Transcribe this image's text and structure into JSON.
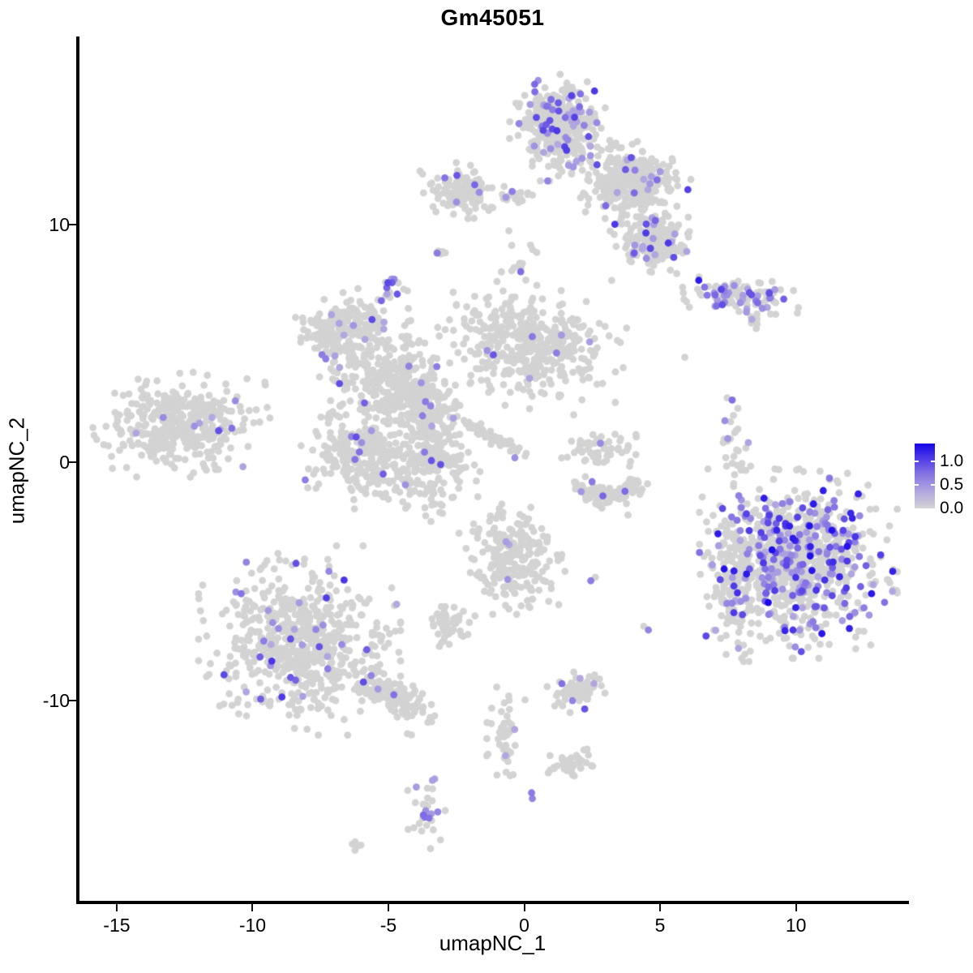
{
  "title": "Gm45051",
  "axes": {
    "x": {
      "label": "umapNC_1",
      "tick_labels": [
        "-15",
        "-10",
        "-5",
        "0",
        "5",
        "10"
      ],
      "tick_values": [
        -15,
        -10,
        -5,
        0,
        5,
        10
      ]
    },
    "y": {
      "label": "umapNC_2",
      "tick_labels": [
        "10",
        "0",
        "-10"
      ],
      "tick_values": [
        10,
        0,
        -10
      ]
    }
  },
  "legend": {
    "labels": [
      "1.0",
      "0.5",
      "0.0"
    ],
    "values": [
      1.0,
      0.5,
      0.0
    ],
    "max_value": 1.38,
    "low_color": "#D3D3D3",
    "high_color": "#1505EA"
  },
  "chart_data": {
    "type": "scatter",
    "title": "Gm45051",
    "xlabel": "umapNC_1",
    "ylabel": "umapNC_2",
    "xlim": [
      -16.49,
      14.16
    ],
    "ylim": [
      -18.42,
      17.9
    ],
    "grid": false,
    "legend_position": "right",
    "point_radius_px": 4.4,
    "point_base_color": "#D3D3D3",
    "colormap": [
      [
        0,
        "#D3D3D3"
      ],
      [
        0.25,
        "#B4A8DF"
      ],
      [
        0.5,
        "#8B7BE3"
      ],
      [
        0.75,
        "#5440E6"
      ],
      [
        1,
        "#1505EA"
      ]
    ],
    "seed": 42,
    "clusters": [
      {
        "name": "top-core",
        "cx": 1.28,
        "cy": 14.12,
        "sx": 0.7,
        "sy": 0.88,
        "rot": 0,
        "n": 420,
        "f": 0.13,
        "imax": 0.8
      },
      {
        "name": "top-arm",
        "cx": 3.97,
        "cy": 11.73,
        "sx": 0.81,
        "sy": 0.68,
        "rot": 10,
        "n": 330,
        "f": 0.05,
        "imax": 0.75
      },
      {
        "name": "topright-blob",
        "cx": 4.72,
        "cy": 9.35,
        "sx": 0.6,
        "sy": 0.58,
        "rot": 0,
        "n": 200,
        "f": 0.1,
        "imax": 0.8
      },
      {
        "name": "topleft-small",
        "cx": -2.3,
        "cy": 11.39,
        "sx": 0.6,
        "sy": 0.44,
        "rot": 0,
        "n": 130,
        "f": 0.06,
        "imax": 0.7
      },
      {
        "name": "topmid-sparse",
        "cx": -0.36,
        "cy": 11.22,
        "sx": 0.36,
        "sy": 0.2,
        "rot": 0,
        "n": 18,
        "f": 0.05,
        "imax": 0.6
      },
      {
        "name": "tiny-pair",
        "cx": -3.13,
        "cy": 8.88,
        "sx": 0.12,
        "sy": 0.12,
        "rot": 0,
        "n": 7,
        "f": 0.35,
        "imax": 0.85
      },
      {
        "name": "top-tail",
        "cx": -0.19,
        "cy": 8.53,
        "sx": 0.25,
        "sy": 0.55,
        "rot": 0,
        "n": 14,
        "f": 0.1,
        "imax": 0.6
      },
      {
        "name": "right-elongated",
        "cx": 8.0,
        "cy": 7.04,
        "sx": 0.9,
        "sy": 0.27,
        "rot": 5,
        "n": 115,
        "f": 0.3,
        "imax": 0.95
      },
      {
        "name": "right-streak",
        "cx": 8.48,
        "cy": 5.95,
        "sx": 0.15,
        "sy": 0.25,
        "rot": 0,
        "n": 9,
        "f": 0.3,
        "imax": 0.7
      },
      {
        "name": "midleft",
        "cx": -6.63,
        "cy": 5.51,
        "sx": 0.75,
        "sy": 0.61,
        "rot": -15,
        "n": 230,
        "f": 0.05,
        "imax": 0.75
      },
      {
        "name": "purple-knot",
        "cx": -4.81,
        "cy": 7.31,
        "sx": 0.21,
        "sy": 0.25,
        "rot": 0,
        "n": 14,
        "f": 0.45,
        "imax": 0.85
      },
      {
        "name": "sparse-chain",
        "cx": -4.18,
        "cy": 5.1,
        "sx": 0.15,
        "sy": 0.85,
        "rot": 0,
        "n": 18,
        "f": 0.08,
        "imax": 0.6
      },
      {
        "name": "center-west",
        "cx": -5.28,
        "cy": 3.4,
        "sx": 0.84,
        "sy": 0.75,
        "rot": 0,
        "n": 190,
        "f": 0.035,
        "imax": 0.7
      },
      {
        "name": "center-mid",
        "cx": -3.79,
        "cy": 2.55,
        "sx": 0.66,
        "sy": 0.95,
        "rot": 0,
        "n": 170,
        "f": 0.03,
        "imax": 0.7
      },
      {
        "name": "center-south-west",
        "cx": -6.03,
        "cy": 0.34,
        "sx": 0.84,
        "sy": 0.88,
        "rot": 0,
        "n": 260,
        "f": 0.025,
        "imax": 0.7
      },
      {
        "name": "center-south-mid",
        "cx": -3.49,
        "cy": 0.17,
        "sx": 0.72,
        "sy": 1.02,
        "rot": 0,
        "n": 220,
        "f": 0.03,
        "imax": 0.7
      },
      {
        "name": "diag-streak",
        "cx": -1.28,
        "cy": 1.12,
        "sx": 0.75,
        "sy": 0.12,
        "rot": 28,
        "n": 60,
        "f": 0.03,
        "imax": 0.6
      },
      {
        "name": "center-east",
        "cx": 0.24,
        "cy": 4.93,
        "sx": 1.34,
        "sy": 1.02,
        "rot": 8,
        "n": 430,
        "f": 0.02,
        "imax": 0.7
      },
      {
        "name": "far-left",
        "cx": -12.6,
        "cy": 1.53,
        "sx": 1.25,
        "sy": 0.85,
        "rot": -8,
        "n": 390,
        "f": 0.022,
        "imax": 0.7
      },
      {
        "name": "crescent",
        "type": "arc",
        "cx": 3.01,
        "cy": -0.34,
        "r": 40,
        "w": 7,
        "ys": 0.8,
        "a0": 20,
        "a1": 160,
        "n": 120,
        "f": 0.025,
        "imax": 0.7
      },
      {
        "name": "crescent-top",
        "cx": 2.78,
        "cy": 0.63,
        "sx": 0.54,
        "sy": 0.41,
        "rot": 0,
        "n": 55,
        "f": 0.02,
        "imax": 0.6
      },
      {
        "name": "right-curved",
        "cx": 7.79,
        "cy": 0.17,
        "sx": 0.21,
        "sy": 1.19,
        "rot": -8,
        "n": 38,
        "f": 0.16,
        "imax": 0.8
      },
      {
        "name": "big-right",
        "cx": 10.09,
        "cy": -4.25,
        "sx": 1.4,
        "sy": 1.53,
        "rot": 0,
        "n": 830,
        "f": 0.28,
        "imax": 1.0
      },
      {
        "name": "big-right-west",
        "cx": 7.7,
        "cy": -5.27,
        "sx": 0.45,
        "sy": 1.19,
        "rot": 0,
        "n": 120,
        "f": 0.09,
        "imax": 0.8
      },
      {
        "name": "center-low",
        "cx": -0.45,
        "cy": -3.91,
        "sx": 0.75,
        "sy": 0.95,
        "rot": 0,
        "n": 240,
        "f": 0.015,
        "imax": 0.6
      },
      {
        "name": "center-low-sw",
        "cx": -2.75,
        "cy": -6.87,
        "sx": 0.36,
        "sy": 0.41,
        "rot": 0,
        "n": 55,
        "f": 0,
        "imax": 0.6
      },
      {
        "name": "bottom-left",
        "cx": -8.27,
        "cy": -7.48,
        "sx": 1.43,
        "sy": 1.53,
        "rot": 0,
        "n": 640,
        "f": 0.05,
        "imax": 0.8
      },
      {
        "name": "bottom-left-tail",
        "cx": -4.84,
        "cy": -9.8,
        "sx": 0.66,
        "sy": 0.31,
        "rot": 28,
        "n": 140,
        "f": 0.03,
        "imax": 0.7
      },
      {
        "name": "bottom-small",
        "cx": 2.03,
        "cy": -9.52,
        "sx": 0.48,
        "sy": 0.41,
        "rot": 0,
        "n": 70,
        "f": 0.07,
        "imax": 0.7
      },
      {
        "name": "chain-vertical",
        "cx": -0.75,
        "cy": -11.39,
        "sx": 0.3,
        "sy": 0.75,
        "rot": 0,
        "n": 45,
        "f": 0.03,
        "imax": 0.6
      },
      {
        "name": "boot",
        "cx": 1.81,
        "cy": -12.6,
        "sx": 0.42,
        "sy": 0.34,
        "rot": -30,
        "n": 40,
        "f": 0,
        "imax": 0.6
      },
      {
        "name": "bottom-tiny",
        "cx": -3.61,
        "cy": -14.46,
        "sx": 0.27,
        "sy": 0.68,
        "rot": 0,
        "n": 32,
        "f": 0.2,
        "imax": 0.7
      },
      {
        "name": "tiny-dash",
        "cx": -6.15,
        "cy": -16.05,
        "sx": 0.18,
        "sy": 0.1,
        "rot": 20,
        "n": 6,
        "f": 0,
        "imax": 0.6
      }
    ],
    "singles": [
      {
        "x": -2.5,
        "y": 12.6,
        "t": 0
      },
      {
        "x": 3.22,
        "y": 7.65,
        "t": 0
      },
      {
        "x": 5.91,
        "y": 4.42,
        "t": 0
      },
      {
        "x": 3.82,
        "y": -2.21,
        "t": 0
      },
      {
        "x": 2.45,
        "y": -4.97,
        "t": 0.5
      },
      {
        "x": 2.62,
        "y": -4.82,
        "t": 0
      },
      {
        "x": 4.57,
        "y": -7.04,
        "t": 0.45
      },
      {
        "x": 4.4,
        "y": -6.88,
        "t": 0
      },
      {
        "x": -4.3,
        "y": -11.4,
        "t": 0
      },
      {
        "x": -4.15,
        "y": -11.45,
        "t": 0
      },
      {
        "x": 0.27,
        "y": -13.88,
        "t": 0.5
      },
      {
        "x": 0.3,
        "y": -14.12,
        "t": 0.45
      }
    ]
  }
}
